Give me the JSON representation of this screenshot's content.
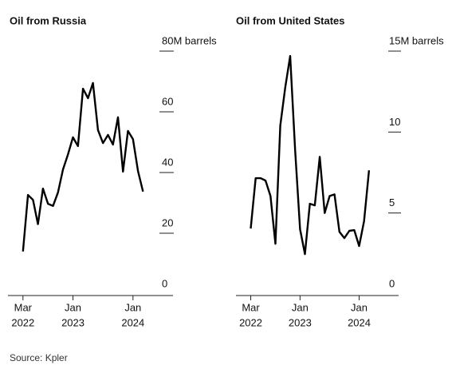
{
  "chart_data": [
    {
      "type": "line",
      "title": "Oil from Russia",
      "x": [
        "2022-03",
        "2022-04",
        "2022-05",
        "2022-06",
        "2022-07",
        "2022-08",
        "2022-09",
        "2022-10",
        "2022-11",
        "2022-12",
        "2023-01",
        "2023-02",
        "2023-03",
        "2023-04",
        "2023-05",
        "2023-06",
        "2023-07",
        "2023-08",
        "2023-09",
        "2023-10",
        "2023-11",
        "2023-12",
        "2024-01",
        "2024-02",
        "2024-03"
      ],
      "series": [
        {
          "name": "Oil from Russia",
          "color": "#000000",
          "values": [
            14,
            32.6,
            31,
            23,
            34.7,
            29.7,
            29,
            33.4,
            41,
            46,
            51.6,
            48.7,
            67.6,
            64.5,
            69.5,
            54,
            49.7,
            52.4,
            49.2,
            58.2,
            40.3,
            53.7,
            51,
            40.5,
            33.7
          ]
        }
      ],
      "xlim": [
        "2021-12",
        "2024-09"
      ],
      "xticks": [
        {
          "value": "2022-03",
          "label": "Mar",
          "sublabel": "2022"
        },
        {
          "value": "2023-01",
          "label": "Jan",
          "sublabel": "2023"
        },
        {
          "value": "2024-01",
          "label": "Jan",
          "sublabel": "2024"
        }
      ],
      "ylim": [
        0,
        80
      ],
      "yticks": [
        0,
        20,
        40,
        60,
        {
          "value": 80,
          "label": "80M barrels"
        }
      ]
    },
    {
      "type": "line",
      "title": "Oil from United States",
      "x": [
        "2022-03",
        "2022-04",
        "2022-05",
        "2022-06",
        "2022-07",
        "2022-08",
        "2022-09",
        "2022-10",
        "2022-11",
        "2022-12",
        "2023-01",
        "2023-02",
        "2023-03",
        "2023-04",
        "2023-05",
        "2023-06",
        "2023-07",
        "2023-08",
        "2023-09",
        "2023-10",
        "2023-11",
        "2023-12",
        "2024-01",
        "2024-02",
        "2024-03"
      ],
      "series": [
        {
          "name": "Oil from United States",
          "color": "#000000",
          "values": [
            4.04,
            7.15,
            7.15,
            7.0,
            6.05,
            3.1,
            10.4,
            12.75,
            14.7,
            8.9,
            4.0,
            2.46,
            5.57,
            5.47,
            8.47,
            5.0,
            6.05,
            6.15,
            3.84,
            3.45,
            3.9,
            3.94,
            2.96,
            4.5,
            7.64
          ]
        }
      ],
      "xlim": [
        "2021-12",
        "2024-09"
      ],
      "xticks": [
        {
          "value": "2022-03",
          "label": "Mar",
          "sublabel": "2022"
        },
        {
          "value": "2023-01",
          "label": "Jan",
          "sublabel": "2023"
        },
        {
          "value": "2024-01",
          "label": "Jan",
          "sublabel": "2024"
        }
      ],
      "ylim": [
        0,
        15
      ],
      "yticks": [
        0,
        5,
        10,
        {
          "value": 15,
          "label": "15M barrels"
        }
      ]
    }
  ],
  "source": "Source: Kpler"
}
